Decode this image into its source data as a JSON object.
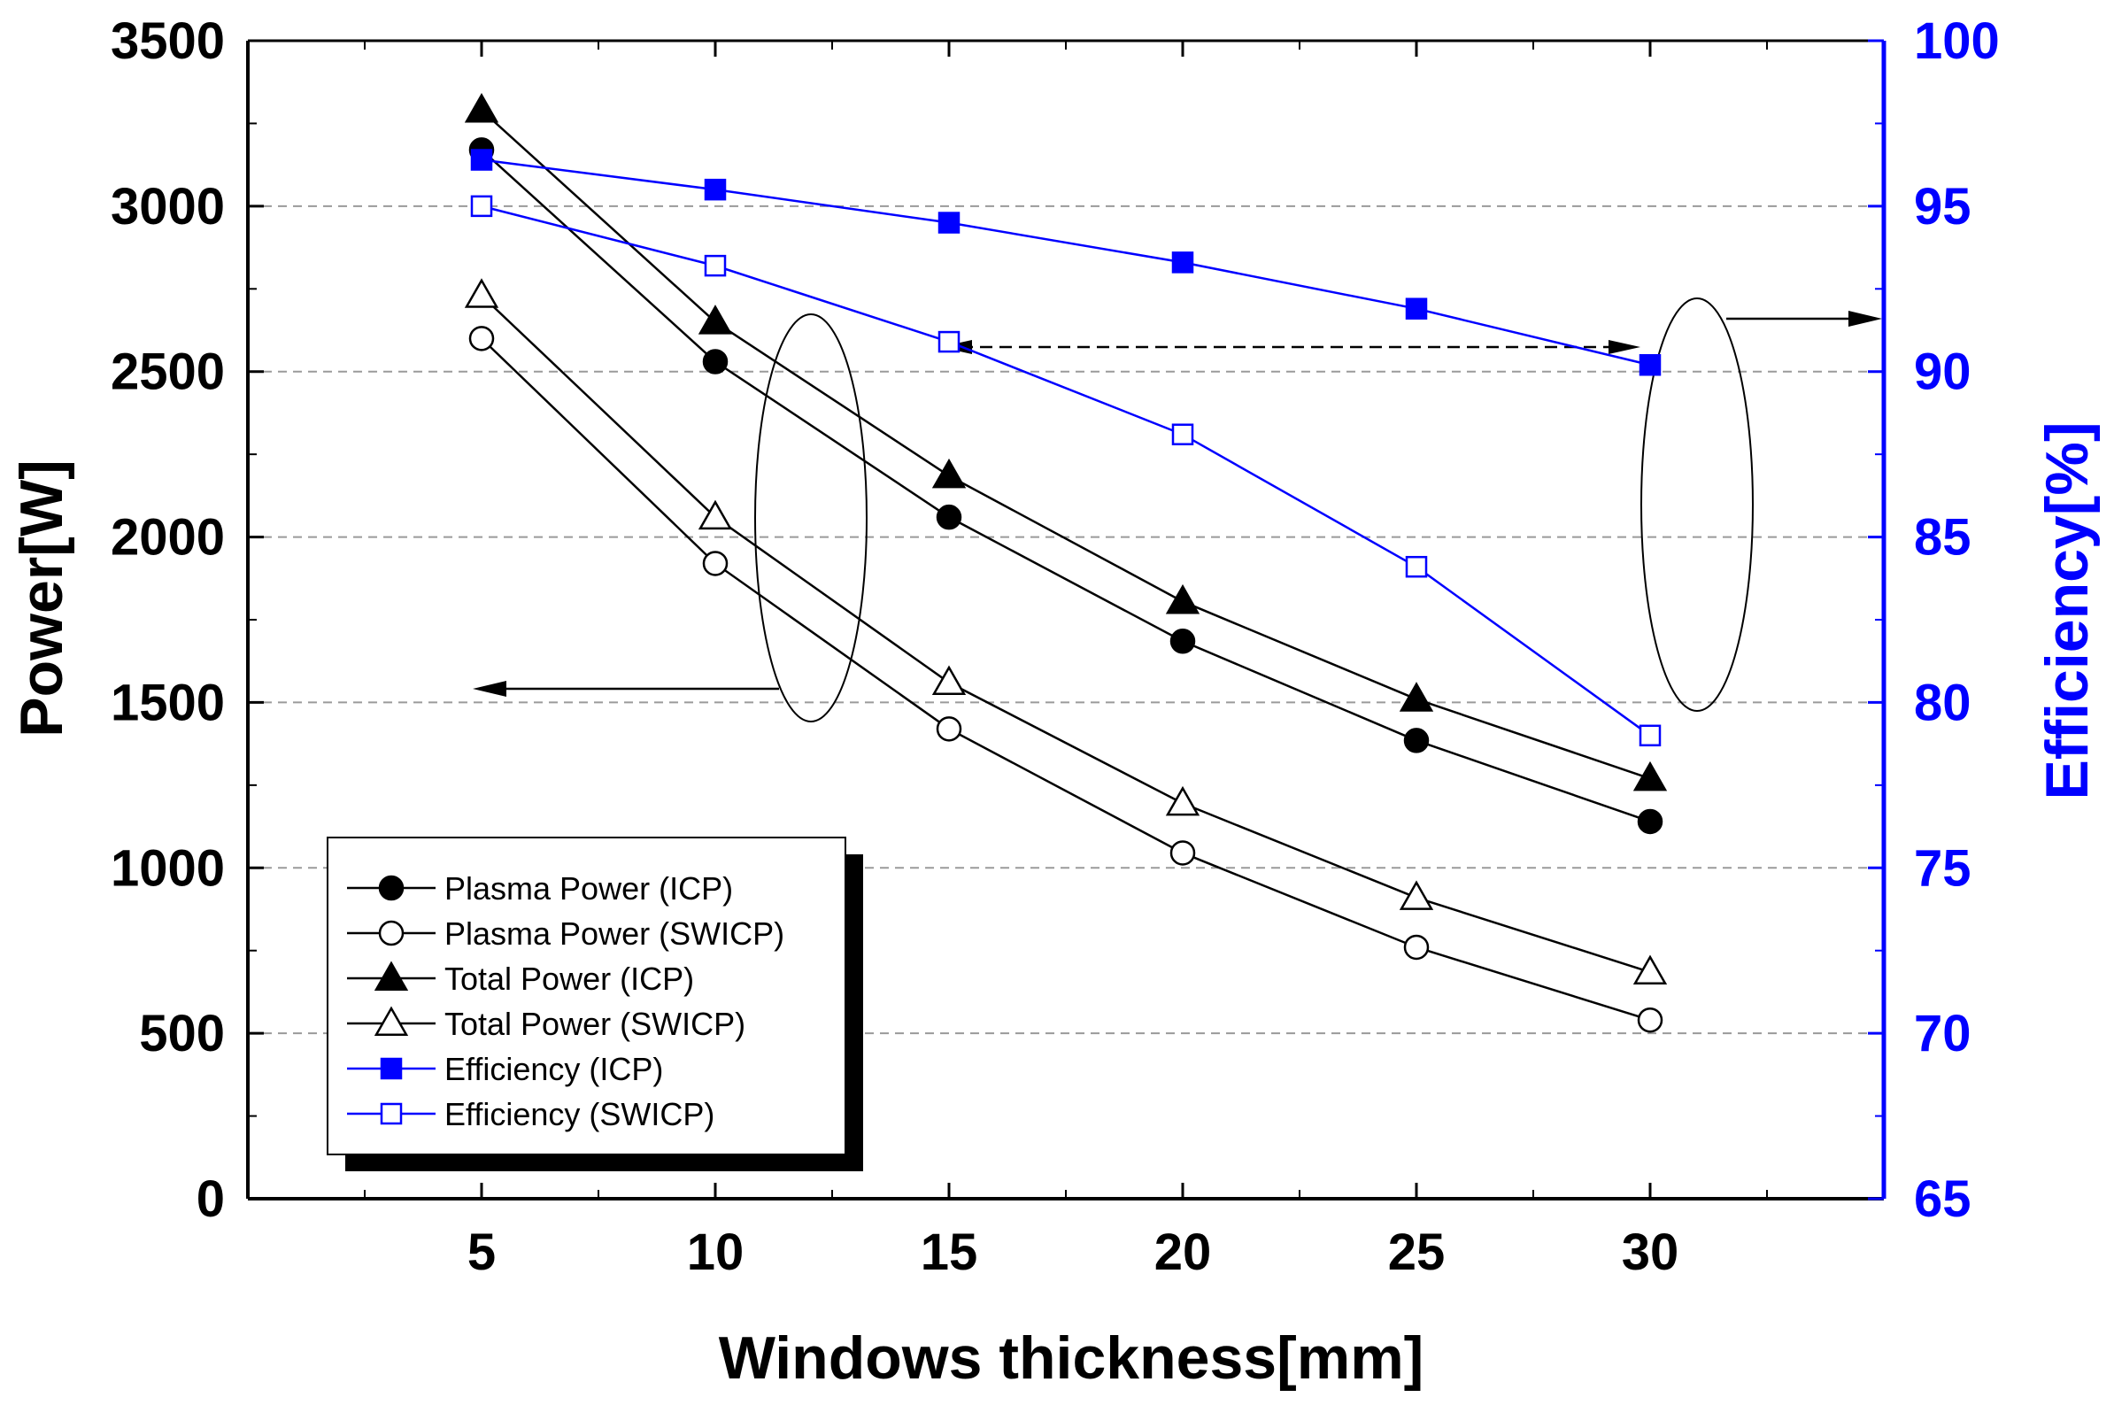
{
  "chart_data": {
    "type": "line",
    "xlabel": "Windows thickness[mm]",
    "ylabel_left": "Power[W]",
    "ylabel_right": "Efficiency[%]",
    "x": [
      5,
      10,
      15,
      20,
      25,
      30
    ],
    "xlim": [
      0,
      35
    ],
    "ylim_left": [
      0,
      3500
    ],
    "ylim_right": [
      65,
      100
    ],
    "x_ticks": [
      "5",
      "10",
      "15",
      "20",
      "25",
      "30"
    ],
    "y_ticks_left": [
      "0",
      "500",
      "1000",
      "1500",
      "2000",
      "2500",
      "3000",
      "3500"
    ],
    "y_ticks_right": [
      "65",
      "70",
      "75",
      "80",
      "85",
      "90",
      "95",
      "100"
    ],
    "grid": "horizontal dashed",
    "legend_position": "bottom-left",
    "left_axis_color": "#000000",
    "right_axis_color": "#0000ff",
    "series": [
      {
        "name": "Plasma Power (ICP)",
        "axis": "left",
        "marker": "circle",
        "filled": true,
        "color": "#000000",
        "values": [
          3170,
          2530,
          2060,
          1685,
          1385,
          1140
        ]
      },
      {
        "name": "Plasma Power (SWICP)",
        "axis": "left",
        "marker": "circle",
        "filled": false,
        "color": "#000000",
        "values": [
          2600,
          1920,
          1420,
          1045,
          760,
          540
        ]
      },
      {
        "name": "Total Power (ICP)",
        "axis": "left",
        "marker": "triangle",
        "filled": true,
        "color": "#000000",
        "values": [
          3290,
          2650,
          2185,
          1805,
          1510,
          1270
        ]
      },
      {
        "name": "Total Power (SWICP)",
        "axis": "left",
        "marker": "triangle",
        "filled": false,
        "color": "#000000",
        "values": [
          2730,
          2060,
          1560,
          1195,
          910,
          685
        ]
      },
      {
        "name": "Efficiency (ICP)",
        "axis": "right",
        "marker": "square",
        "filled": true,
        "color": "#0000ff",
        "values": [
          96.4,
          95.5,
          94.5,
          93.3,
          91.9,
          90.2
        ]
      },
      {
        "name": "Efficiency (SWICP)",
        "axis": "right",
        "marker": "square",
        "filled": false,
        "color": "#0000ff",
        "values": [
          95.0,
          93.2,
          90.9,
          88.1,
          84.1,
          79.0
        ]
      }
    ]
  }
}
